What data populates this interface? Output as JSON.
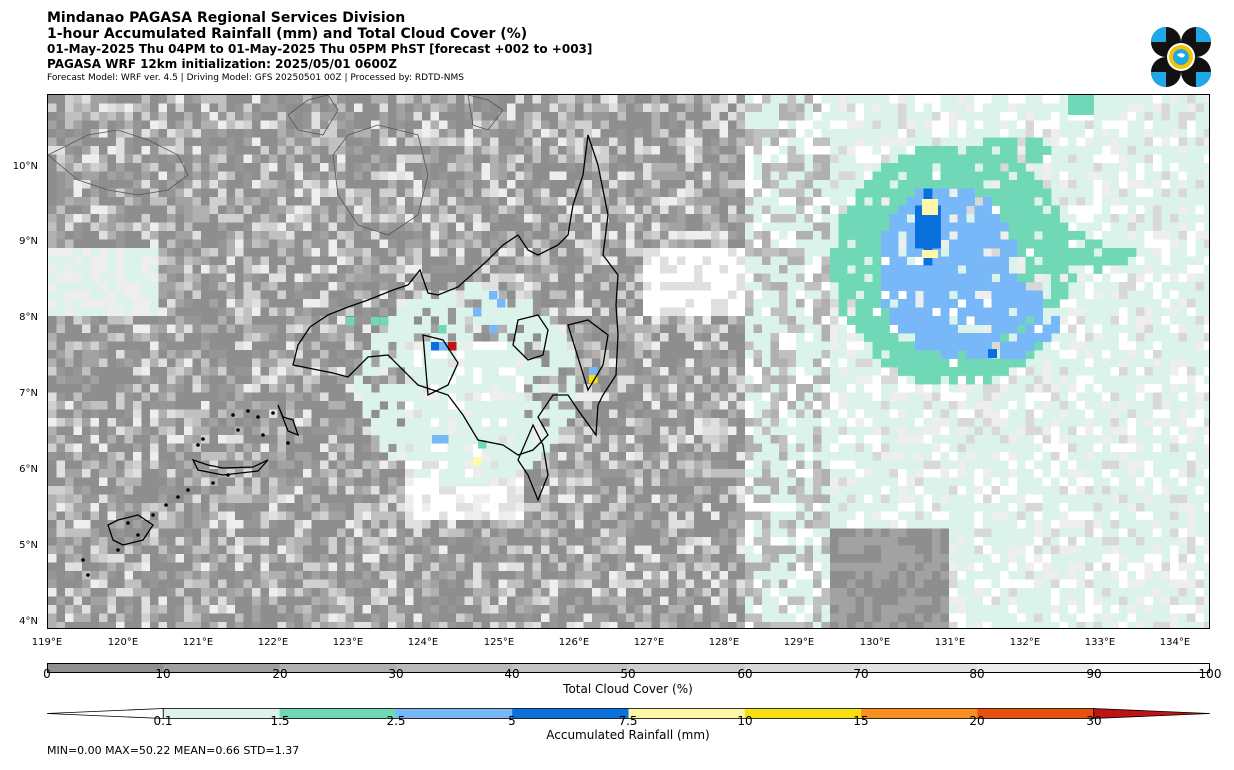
{
  "header": {
    "line1": "Mindanao PAGASA Regional Services Division",
    "line2": "1-hour Accumulated Rainfall (mm) and Total Cloud Cover (%)",
    "line3": "01-May-2025 Thu 04PM to 01-May-2025 Thu 05PM PhST [forecast +002 to +003]",
    "line4": "PAGASA WRF 12km initialization: 2025/05/01 0600Z",
    "line5": "Forecast Model: WRF ver. 4.5 | Driving Model: GFS 20250501 00Z | Processed by: RDTD-NMS"
  },
  "map": {
    "lat_labels": [
      "10°N",
      "9°N",
      "8°N",
      "7°N",
      "6°N",
      "5°N",
      "4°N"
    ],
    "lon_labels": [
      "119°E",
      "120°E",
      "121°E",
      "122°E",
      "123°E",
      "124°E",
      "125°E",
      "126°E",
      "127°E",
      "128°E",
      "129°E",
      "130°E",
      "131°E",
      "132°E",
      "133°E",
      "134°E"
    ]
  },
  "cloud_colorbar": {
    "label": "Total Cloud Cover (%)",
    "ticks": [
      "0",
      "10",
      "20",
      "30",
      "40",
      "50",
      "60",
      "70",
      "80",
      "90",
      "100"
    ],
    "colors": [
      "#909090",
      "#a0a0a0",
      "#b0b0b0",
      "#bababa",
      "#c4c4c4",
      "#cecece",
      "#d8d8d8",
      "#e2e2e2",
      "#ececec",
      "#f6f6f6"
    ]
  },
  "rain_colorbar": {
    "label": "Accumulated Rainfall (mm)",
    "ticks": [
      "0.1",
      "1.5",
      "2.5",
      "5",
      "7.5",
      "10",
      "15",
      "20",
      "30"
    ],
    "colors": [
      "#dcf3ec",
      "#70d8b7",
      "#78b8f8",
      "#0a70dc",
      "#fff8a8",
      "#f8e010",
      "#f89020",
      "#e85010",
      "#c01414"
    ]
  },
  "stats": "MIN=0.00   MAX=50.22   MEAN=0.66   STD=1.37"
}
